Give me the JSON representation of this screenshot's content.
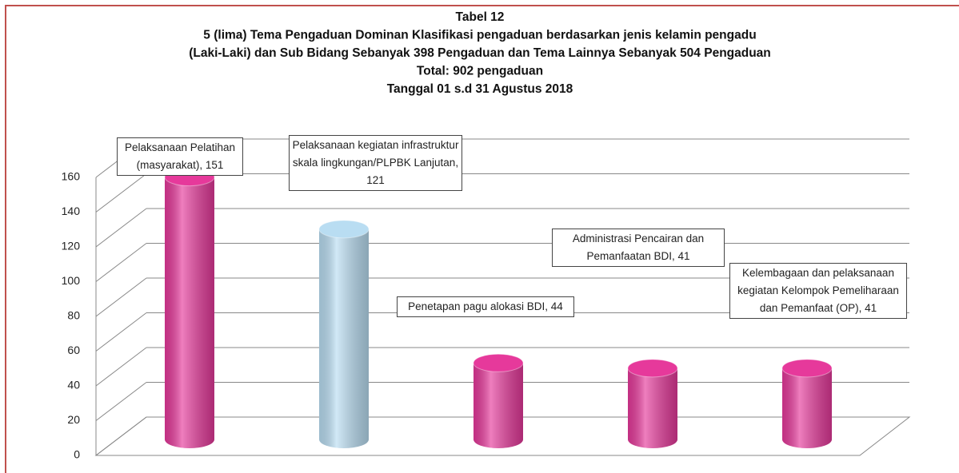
{
  "chart_data": {
    "type": "bar",
    "title_lines": [
      "Tabel 12",
      "5 (lima) Tema Pengaduan Dominan Klasifikasi pengaduan berdasarkan jenis kelamin pengadu",
      "(Laki-Laki) dan Sub Bidang Sebanyak  398 Pengaduan dan Tema Lainnya Sebanyak 504 Pengaduan",
      "Total: 902 pengaduan",
      "Tanggal  01 s.d 31 Agustus 2018"
    ],
    "values": [
      151,
      121,
      44,
      41,
      41
    ],
    "value_labels": [
      "Pelaksanaan Pelatihan (masyarakat), 151",
      "Pelaksanaan kegiatan infrastruktur skala lingkungan/PLPBK Lanjutan, 121",
      "Penetapan pagu alokasi BDI, 44",
      "Administrasi Pencairan dan Pemanfaatan BDI, 41",
      "Kelembagaan dan pelaksanaan kegiatan Kelompok Pemeliharaan dan Pemanfaat (OP), 41"
    ],
    "colors": [
      "#e6399b",
      "#b9ddf2",
      "#e6399b",
      "#e6399b",
      "#e6399b"
    ],
    "ylim": [
      0,
      160
    ],
    "yticks": [
      0,
      20,
      40,
      60,
      80,
      100,
      120,
      140,
      160
    ],
    "grid": true
  }
}
